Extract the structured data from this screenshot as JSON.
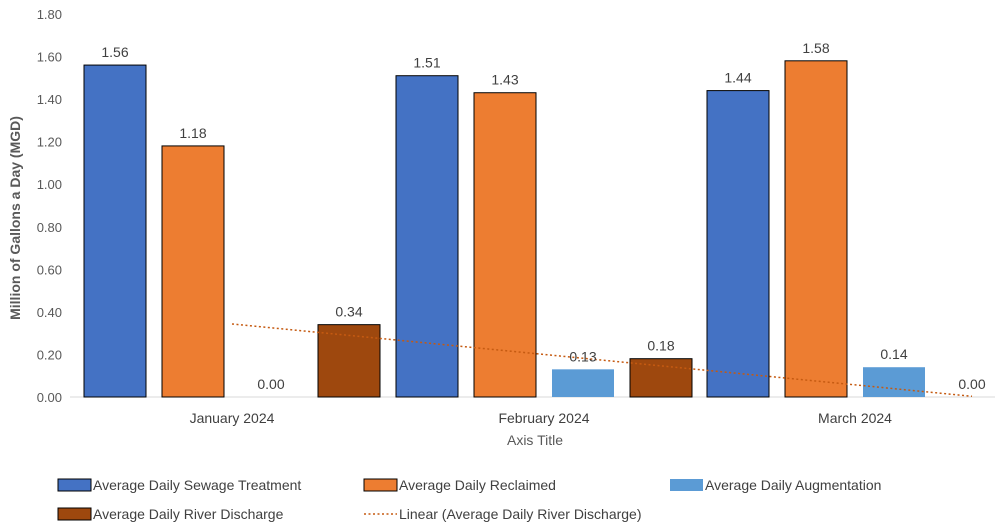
{
  "chart_data": {
    "type": "bar",
    "categories": [
      "January 2024",
      "February 2024",
      "March 2024"
    ],
    "series": [
      {
        "name": "Average Daily Sewage Treatment",
        "values": [
          1.56,
          1.51,
          1.44
        ],
        "labels": [
          "1.56",
          "1.51",
          "1.44"
        ],
        "color": "#4472C4"
      },
      {
        "name": "Average Daily Reclaimed",
        "values": [
          1.18,
          1.43,
          1.58
        ],
        "labels": [
          "1.18",
          "1.43",
          "1.58"
        ],
        "color": "#ED7D31"
      },
      {
        "name": "Average Daily Augmentation",
        "values": [
          0.0,
          0.13,
          0.14
        ],
        "labels": [
          "0.00",
          "0.13",
          "0.14"
        ],
        "color": "#5B9BD5"
      },
      {
        "name": "Average Daily River Discharge",
        "values": [
          0.34,
          0.18,
          0.0
        ],
        "labels": [
          "0.34",
          "0.18",
          "0.00"
        ],
        "color": "#9E480E"
      }
    ],
    "trendline": {
      "name": "Linear (Average Daily River Discharge)",
      "series": "Average Daily River Discharge",
      "type": "linear",
      "color": "#C55A11"
    },
    "ylim": [
      0,
      1.8
    ],
    "yticks": [
      "0.00",
      "0.20",
      "0.40",
      "0.60",
      "0.80",
      "1.00",
      "1.20",
      "1.40",
      "1.60",
      "1.80"
    ],
    "xlabel": "Axis Title",
    "ylabel": "Million of Gallons a Day (MGD)",
    "grid": false,
    "legend": "bottom"
  }
}
